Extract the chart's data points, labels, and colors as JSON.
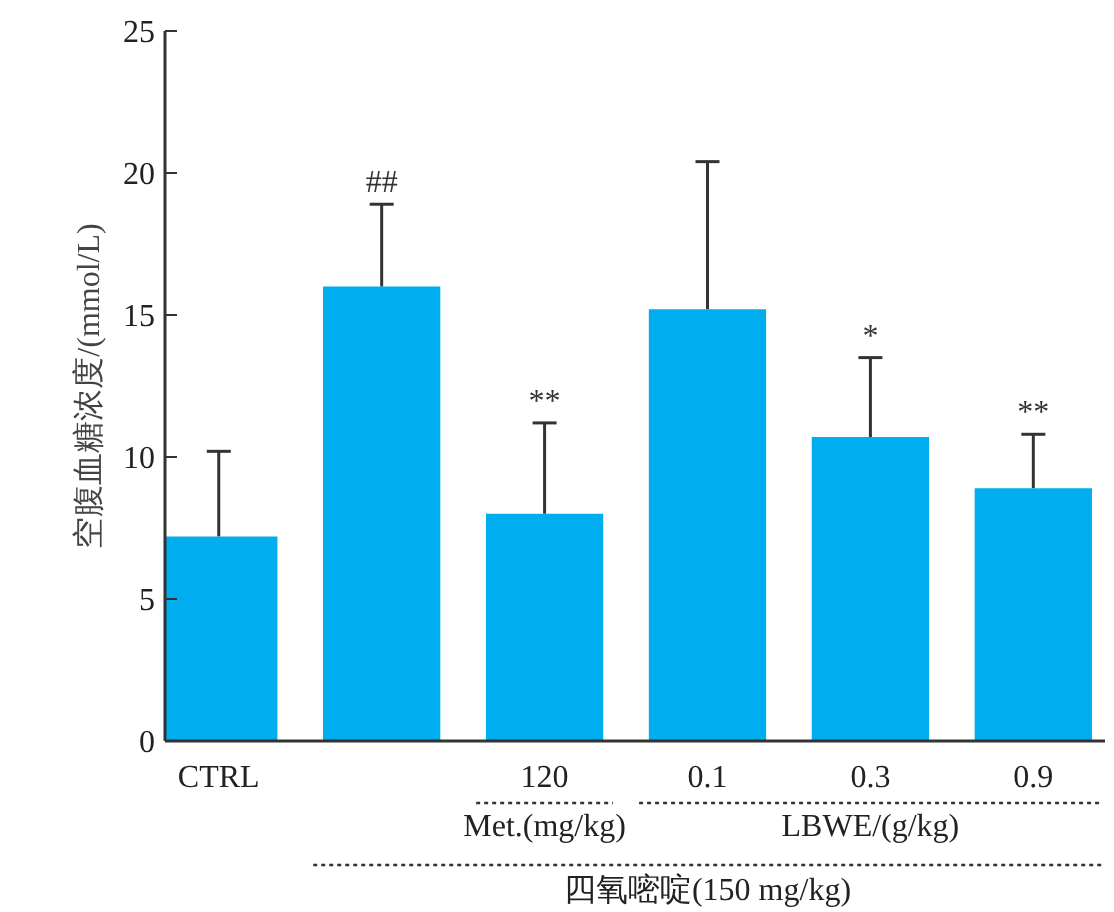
{
  "chart_data": {
    "type": "bar",
    "ylabel": "空腹血糖浓度/(mmol/L)",
    "categories": [
      "CTRL",
      null,
      "120",
      "0.1",
      "0.3",
      "0.9"
    ],
    "values": [
      7.2,
      16.0,
      8.0,
      15.2,
      10.7,
      8.9
    ],
    "errors": [
      [
        7.2,
        10.2
      ],
      [
        16.0,
        18.9
      ],
      [
        8.0,
        11.2
      ],
      [
        15.2,
        20.4
      ],
      [
        10.7,
        13.5
      ],
      [
        8.9,
        10.8
      ]
    ],
    "color": "#00aeef",
    "ylim": [
      0,
      25
    ],
    "yticks": [
      0,
      5,
      10,
      15,
      20,
      25
    ],
    "grid": false,
    "annotations": [
      "##",
      "**",
      "*",
      "**",
      "Met.(mg/kg)",
      "LBWE/(g/kg)",
      "四氧嘧啶(150 mg/kg)"
    ]
  }
}
